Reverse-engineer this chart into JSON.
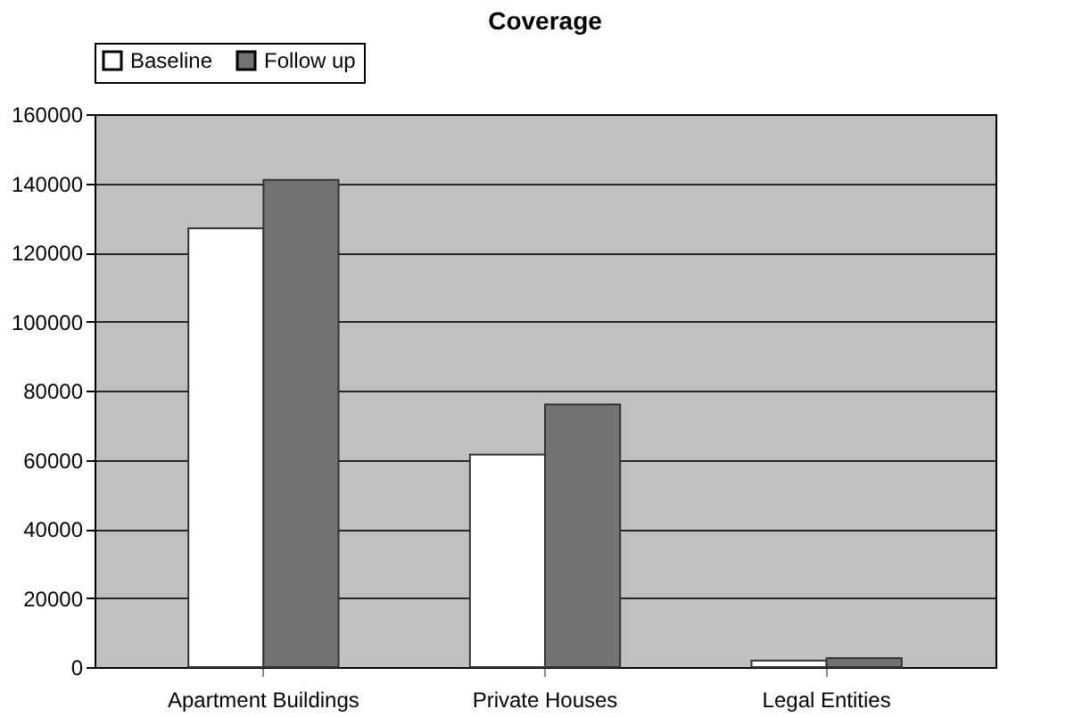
{
  "chart_data": {
    "type": "bar",
    "title": "Coverage",
    "categories": [
      "Apartment Buildings",
      "Private Houses",
      "Legal Entities"
    ],
    "series": [
      {
        "name": "Baseline",
        "color": "#ffffff",
        "values": [
          127000,
          61500,
          1900
        ]
      },
      {
        "name": "Follow up",
        "color": "#737373",
        "values": [
          141000,
          76000,
          2600
        ]
      }
    ],
    "ylim": [
      0,
      160000
    ],
    "yticks": [
      0,
      20000,
      40000,
      60000,
      80000,
      100000,
      120000,
      140000,
      160000
    ],
    "grid": "y",
    "legend": "top"
  }
}
